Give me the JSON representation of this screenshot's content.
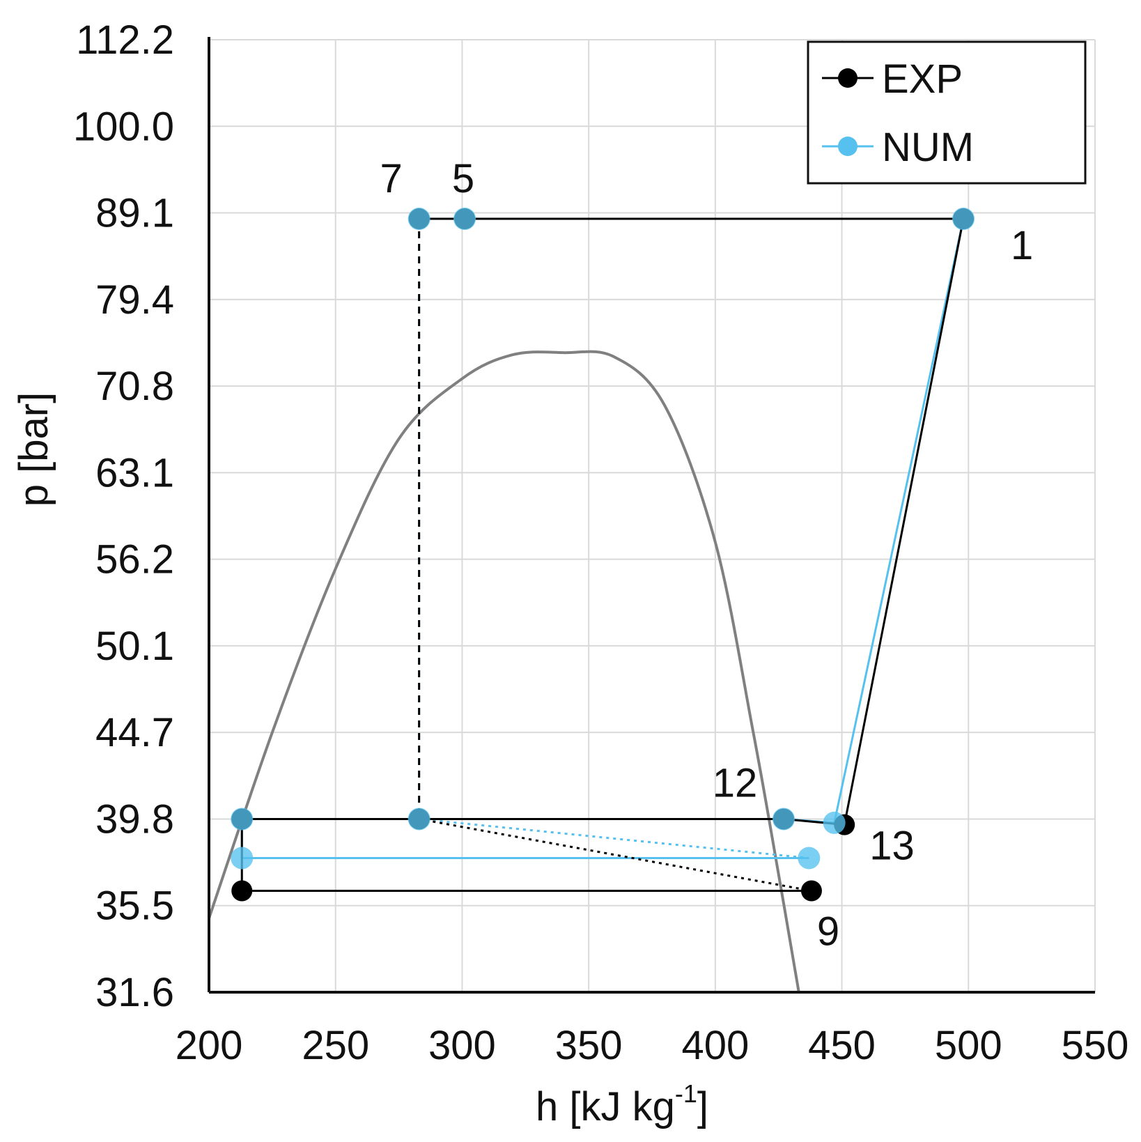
{
  "chart_data": {
    "type": "scatter",
    "title": "",
    "xlabel": "h [kJ kg-1]",
    "xlabel_parts": {
      "base": "h [kJ kg",
      "sup": "-1",
      "close": "]"
    },
    "ylabel": "p [bar]",
    "xlim": [
      200,
      550
    ],
    "x_ticks": [
      200,
      250,
      300,
      350,
      400,
      450,
      500,
      550
    ],
    "x_tick_labels": [
      "200",
      "250",
      "300",
      "350",
      "400",
      "450",
      "500",
      "550"
    ],
    "y_ticks": [
      31.6,
      35.5,
      39.8,
      44.7,
      50.1,
      56.2,
      63.1,
      70.8,
      79.4,
      89.1,
      100.0,
      112.2
    ],
    "y_tick_labels": [
      "31.6",
      "35.5",
      "39.8",
      "44.7",
      "50.1",
      "56.2",
      "63.1",
      "70.8",
      "79.4",
      "89.1",
      "100.0",
      "112.2"
    ],
    "y_scale": "log",
    "grid": true,
    "legend": {
      "position": "top-right",
      "entries": [
        {
          "name": "EXP",
          "color": "#000000"
        },
        {
          "name": "NUM",
          "color": "#56c1ee"
        }
      ]
    },
    "series": [
      {
        "name": "EXP",
        "color": "#000000",
        "points": [
          {
            "x": 498,
            "y": 88.4
          },
          {
            "x": 283,
            "y": 88.4
          },
          {
            "x": 301,
            "y": 88.4
          },
          {
            "x": 283,
            "y": 39.8
          },
          {
            "x": 213,
            "y": 39.8
          },
          {
            "x": 213,
            "y": 36.2
          },
          {
            "x": 438,
            "y": 36.2
          },
          {
            "x": 427,
            "y": 39.8
          },
          {
            "x": 451,
            "y": 39.5
          }
        ],
        "segments": [
          {
            "from": [
              498,
              88.4
            ],
            "to": [
              283,
              88.4
            ],
            "style": "solid"
          },
          {
            "from": [
              283,
              88.4
            ],
            "to": [
              283,
              39.8
            ],
            "style": "dashed"
          },
          {
            "from": [
              213,
              39.8
            ],
            "to": [
              427,
              39.8
            ],
            "style": "solid"
          },
          {
            "from": [
              427,
              39.8
            ],
            "to": [
              451,
              39.5
            ],
            "style": "solid"
          },
          {
            "from": [
              213,
              39.8
            ],
            "to": [
              213,
              36.2
            ],
            "style": "solid"
          },
          {
            "from": [
              213,
              36.2
            ],
            "to": [
              438,
              36.2
            ],
            "style": "solid"
          },
          {
            "from": [
              283,
              39.8
            ],
            "to": [
              438,
              36.2
            ],
            "style": "dotted"
          },
          {
            "from": [
              451,
              39.5
            ],
            "to": [
              498,
              88.4
            ],
            "style": "solid"
          }
        ]
      },
      {
        "name": "NUM",
        "color": "#56c1ee",
        "points": [
          {
            "x": 498,
            "y": 88.4
          },
          {
            "x": 283,
            "y": 88.4
          },
          {
            "x": 301,
            "y": 88.4
          },
          {
            "x": 283,
            "y": 39.8
          },
          {
            "x": 213,
            "y": 39.8
          },
          {
            "x": 213,
            "y": 37.8
          },
          {
            "x": 437,
            "y": 37.8
          },
          {
            "x": 427,
            "y": 39.8
          },
          {
            "x": 447,
            "y": 39.6
          }
        ],
        "segments": [
          {
            "from": [
              498,
              88.4
            ],
            "to": [
              283,
              88.4
            ],
            "style": "solid"
          },
          {
            "from": [
              283,
              88.4
            ],
            "to": [
              283,
              39.8
            ],
            "style": "dashed"
          },
          {
            "from": [
              213,
              39.8
            ],
            "to": [
              427,
              39.8
            ],
            "style": "solid"
          },
          {
            "from": [
              427,
              39.8
            ],
            "to": [
              447,
              39.6
            ],
            "style": "solid"
          },
          {
            "from": [
              213,
              39.8
            ],
            "to": [
              213,
              37.8
            ],
            "style": "solid"
          },
          {
            "from": [
              213,
              37.8
            ],
            "to": [
              437,
              37.8
            ],
            "style": "solid"
          },
          {
            "from": [
              283,
              39.8
            ],
            "to": [
              437,
              37.8
            ],
            "style": "dotted"
          },
          {
            "from": [
              447,
              39.6
            ],
            "to": [
              498,
              88.4
            ],
            "style": "solid"
          }
        ]
      }
    ],
    "saturation_dome": {
      "name": "saturation curve",
      "color": "#808080",
      "points": [
        [
          200,
          34.9
        ],
        [
          225,
          44.7
        ],
        [
          250,
          55.5
        ],
        [
          275,
          66.0
        ],
        [
          300,
          71.5
        ],
        [
          320,
          73.8
        ],
        [
          340,
          74.0
        ],
        [
          360,
          73.6
        ],
        [
          380,
          69.0
        ],
        [
          400,
          57.5
        ],
        [
          415,
          44.7
        ],
        [
          425,
          37.0
        ],
        [
          433,
          31.6
        ]
      ]
    },
    "point_labels": [
      {
        "text": "1",
        "x": 498,
        "y": 88.4
      },
      {
        "text": "5",
        "x": 301,
        "y": 88.4
      },
      {
        "text": "7",
        "x": 283,
        "y": 88.4
      },
      {
        "text": "9",
        "x": 438,
        "y": 36.2
      },
      {
        "text": "12",
        "x": 427,
        "y": 39.8
      },
      {
        "text": "13",
        "x": 451,
        "y": 39.5
      }
    ]
  }
}
